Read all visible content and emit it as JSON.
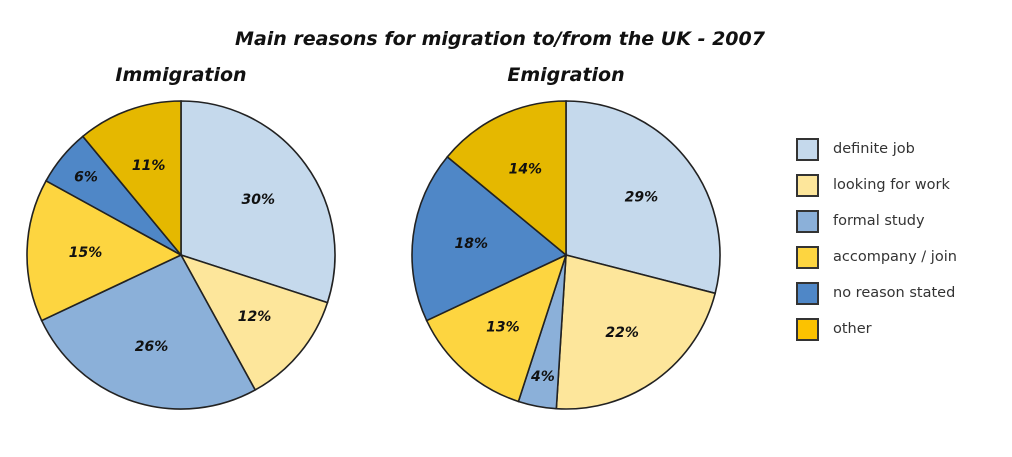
{
  "chart_data": {
    "type": "pie",
    "title": "Main reasons for migration to/from the UK - 2007",
    "categories": [
      "definite job",
      "looking for work",
      "formal study",
      "accompany / join",
      "no reason stated",
      "other"
    ],
    "colors": [
      "#c5d9ec",
      "#fde69b",
      "#8bb0d9",
      "#fdd540",
      "#4f87c7",
      "#e5b800"
    ],
    "legend_colors": [
      "#c5d9ec",
      "#fde69b",
      "#8bb0d9",
      "#fdd540",
      "#4f87c7",
      "#fcc200"
    ],
    "legend_position": "right",
    "pies": [
      {
        "title": "Immigration",
        "values": [
          30,
          12,
          26,
          15,
          6,
          11
        ],
        "labels": [
          "30%",
          "12%",
          "26%",
          "15%",
          "6%",
          "11%"
        ]
      },
      {
        "title": "Emigration",
        "values": [
          29,
          22,
          4,
          13,
          18,
          14
        ],
        "labels": [
          "29%",
          "22%",
          "4%",
          "13%",
          "18%",
          "14%"
        ]
      }
    ]
  }
}
